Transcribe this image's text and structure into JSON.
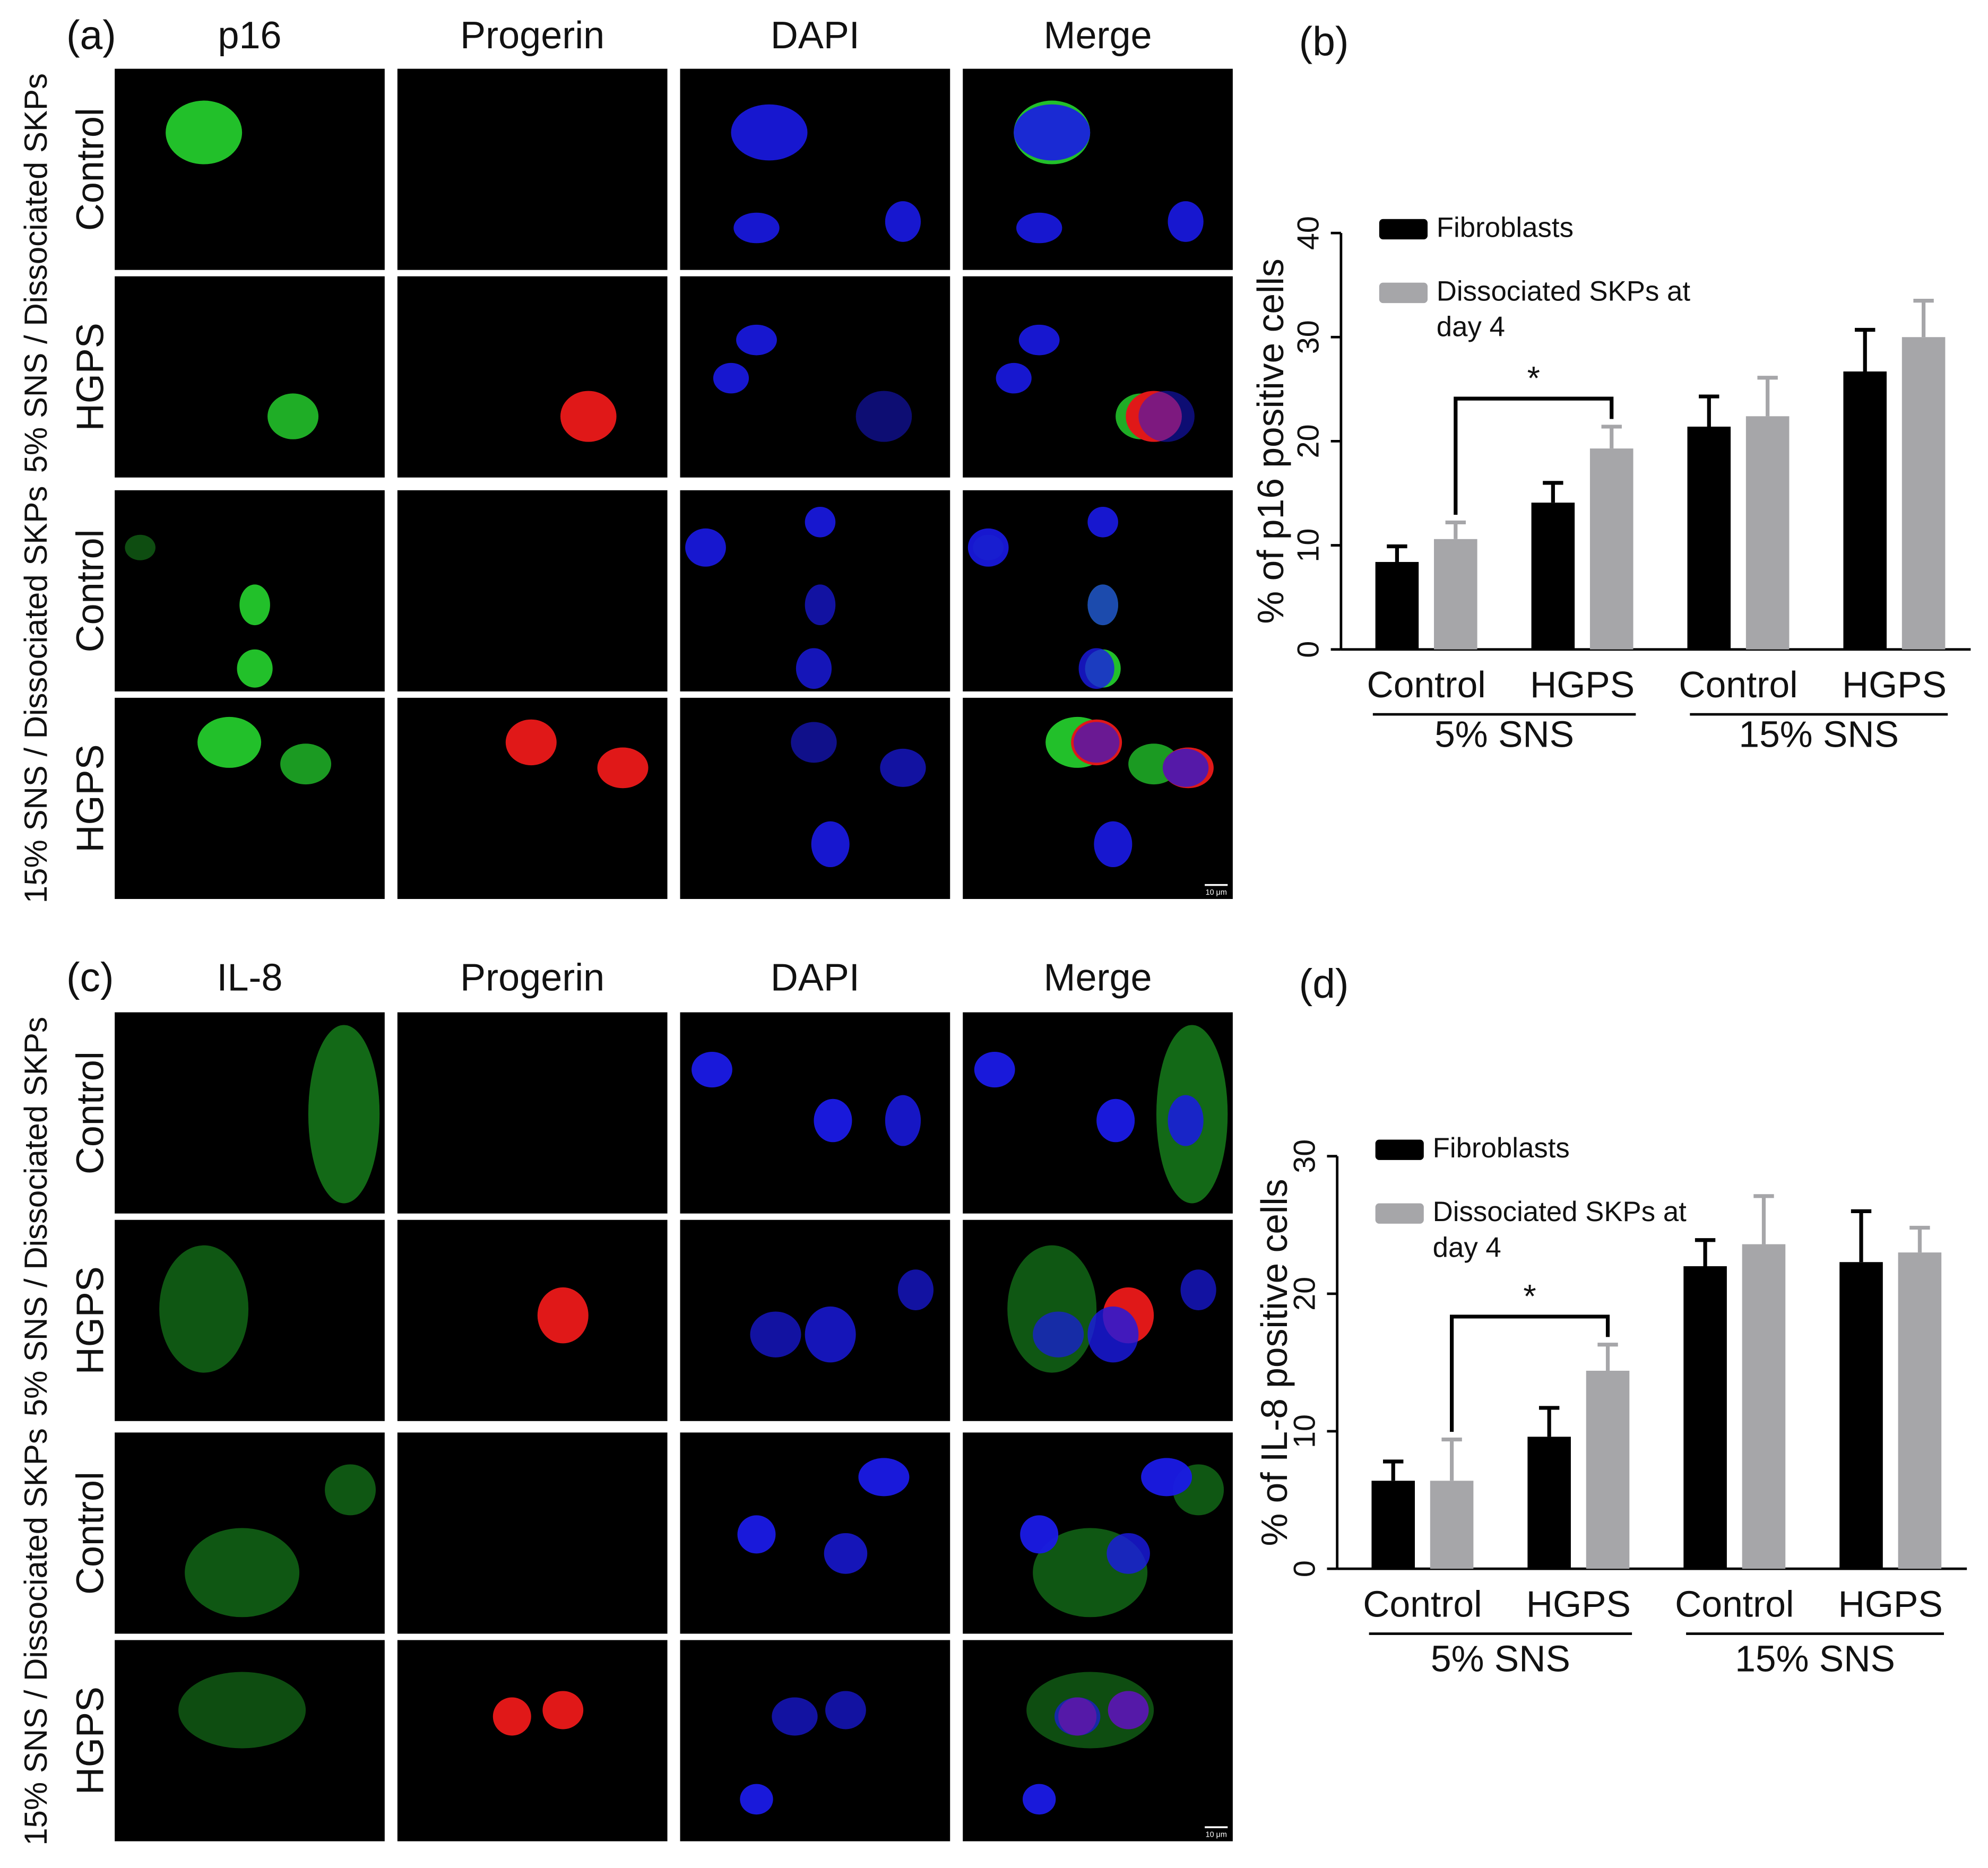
{
  "figure": {
    "panels": [
      {
        "label": "(a)",
        "columns": [
          "p16",
          "Progerin",
          "DAPI",
          "Merge"
        ],
        "rows": [
          "Control",
          "HGPS",
          "Control",
          "HGPS"
        ],
        "conditions": [
          "5% SNS / Dissociated SKPs",
          "15% SNS / Dissociated SKPs"
        ],
        "scale_bar": "10 μm"
      },
      {
        "label": "(c)",
        "columns": [
          "IL-8",
          "Progerin",
          "DAPI",
          "Merge"
        ],
        "rows": [
          "Control",
          "HGPS",
          "Control",
          "HGPS"
        ],
        "conditions": [
          "5% SNS / Dissociated SKPs",
          "15% SNS / Dissociated SKPs"
        ],
        "scale_bar": "10 μm"
      }
    ]
  },
  "chart_data": [
    {
      "type": "bar",
      "panel": "(b)",
      "y_label": "% of p16 positive cells",
      "categories": [
        "Control",
        "HGPS",
        "Control",
        "HGPS"
      ],
      "groups": [
        "5% SNS",
        "15% SNS"
      ],
      "series": [
        {
          "name": "Fibroblasts",
          "color": "#000000",
          "values": [
            8.4,
            14.1,
            21.4,
            26.7
          ],
          "errors": [
            1.5,
            1.9,
            2.9,
            4.0
          ]
        },
        {
          "name": "Dissociated SKPs at day 4",
          "color": "#a6a6a9",
          "values": [
            10.6,
            19.3,
            22.4,
            30.0
          ],
          "errors": [
            1.6,
            2.1,
            3.7,
            3.5
          ]
        }
      ],
      "annotation": "*",
      "ylim": [
        0,
        40
      ],
      "yticks": [
        0,
        10,
        20,
        30,
        40
      ]
    },
    {
      "type": "bar",
      "panel": "(d)",
      "y_label": "% of IL-8 positive cells",
      "categories": [
        "Control",
        "HGPS",
        "Control",
        "HGPS"
      ],
      "groups": [
        "5% SNS",
        "15% SNS"
      ],
      "series": [
        {
          "name": "Fibroblasts",
          "color": "#000000",
          "values": [
            6.4,
            9.6,
            22.0,
            22.3
          ],
          "errors": [
            1.4,
            2.1,
            1.9,
            3.7
          ]
        },
        {
          "name": "Dissociated SKPs at day 4",
          "color": "#a6a6a9",
          "values": [
            6.4,
            14.4,
            23.6,
            23.0
          ],
          "errors": [
            3.0,
            1.9,
            3.5,
            1.8
          ]
        }
      ],
      "annotation": "*",
      "ylim": [
        0,
        30
      ],
      "yticks": [
        0,
        10,
        20,
        30
      ]
    }
  ]
}
